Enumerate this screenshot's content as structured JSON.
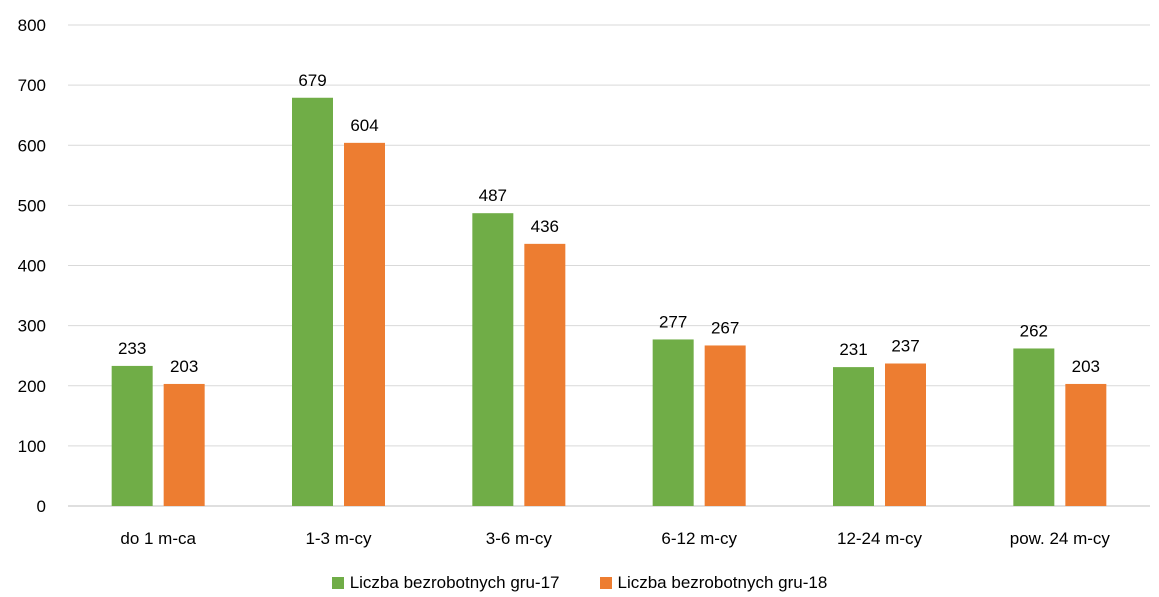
{
  "chart_data": {
    "type": "bar",
    "categories": [
      "do 1 m-ca",
      "1-3 m-cy",
      "3-6 m-cy",
      "6-12 m-cy",
      "12-24 m-cy",
      "pow. 24 m-cy"
    ],
    "series": [
      {
        "name": "Liczba bezrobotnych gru-17",
        "color": "#70ad47",
        "values": [
          233,
          679,
          487,
          277,
          231,
          262
        ]
      },
      {
        "name": "Liczba bezrobotnych gru-18",
        "color": "#ed7d31",
        "values": [
          203,
          604,
          436,
          267,
          237,
          203
        ]
      }
    ],
    "ylim": [
      0,
      800
    ],
    "yticks": [
      "0",
      "100",
      "200",
      "300",
      "400",
      "500",
      "600",
      "700",
      "800"
    ],
    "grid": true,
    "legend_position": "bottom",
    "data_labels": true
  }
}
